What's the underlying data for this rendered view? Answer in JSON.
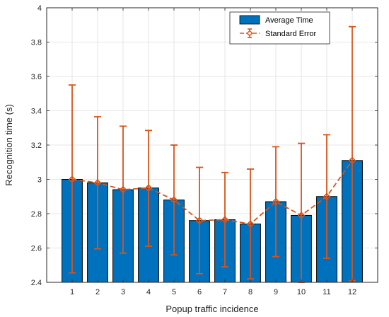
{
  "chart_data": {
    "type": "bar",
    "xlabel": "Popup traffic incidence",
    "ylabel": "Recognition time (s)",
    "ylim": [
      2.4,
      4.0
    ],
    "yticks": [
      2.4,
      2.6,
      2.8,
      3.0,
      3.2,
      3.4,
      3.6,
      3.8,
      4.0
    ],
    "ytick_labels": [
      "2.4",
      "2.6",
      "2.8",
      "3",
      "3.2",
      "3.4",
      "3.6",
      "3.8",
      "4"
    ],
    "categories": [
      "1",
      "2",
      "3",
      "4",
      "5",
      "6",
      "7",
      "8",
      "9",
      "10",
      "11",
      "12"
    ],
    "grid": true,
    "legend_position": "top-right",
    "series": [
      {
        "name": "Average Time",
        "kind": "bar",
        "color": "#0072BD",
        "values": [
          3.0,
          2.98,
          2.94,
          2.95,
          2.88,
          2.76,
          2.765,
          2.74,
          2.87,
          2.79,
          2.9,
          3.11
        ]
      },
      {
        "name": "Standard Error",
        "kind": "line-errorbar",
        "color": "#D95319",
        "values": [
          3.0,
          2.98,
          2.94,
          2.95,
          2.88,
          2.76,
          2.765,
          2.74,
          2.87,
          2.79,
          2.9,
          3.11
        ],
        "upper": [
          3.55,
          3.365,
          3.31,
          3.285,
          3.2,
          3.07,
          3.04,
          3.06,
          3.19,
          3.21,
          3.26,
          3.89
        ],
        "lower": [
          2.455,
          2.595,
          2.57,
          2.61,
          2.56,
          2.45,
          2.49,
          2.42,
          2.55,
          2.4,
          2.54,
          2.41
        ]
      }
    ]
  }
}
